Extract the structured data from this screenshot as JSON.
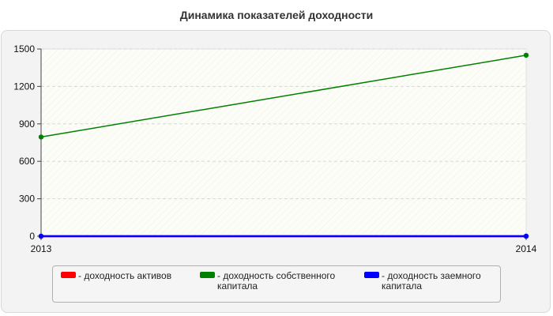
{
  "chart_data": {
    "type": "line",
    "title": "Динамика показателей доходности",
    "xlabel": "",
    "ylabel": "",
    "categories": [
      "2013",
      "2014"
    ],
    "ylim": [
      0,
      1500
    ],
    "yticks": [
      "0",
      "300",
      "600",
      "900",
      "1200",
      "1500"
    ],
    "grid": true,
    "legend_position": "bottom",
    "series": [
      {
        "name": "- доходность активов",
        "color": "#ff0000",
        "values": [
          0,
          0
        ]
      },
      {
        "name": "- доходность собственного капитала",
        "color": "#008000",
        "values": [
          795,
          1450
        ]
      },
      {
        "name": "- доходность заемного капитала",
        "color": "#0000ff",
        "values": [
          0,
          0
        ]
      }
    ]
  }
}
